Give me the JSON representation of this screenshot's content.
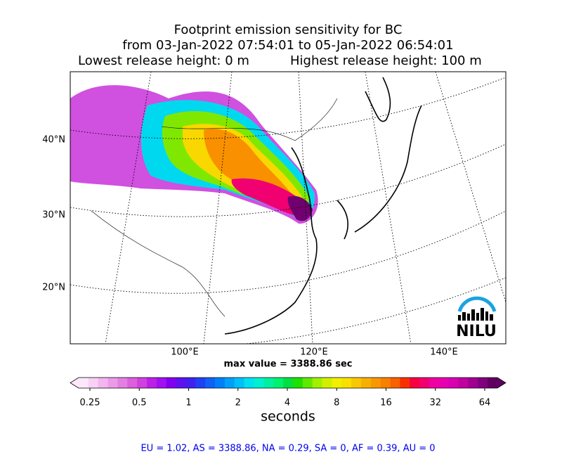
{
  "title": [
    "Footprint emission sensitivity for BC",
    "from 03-Jan-2022 07:54:01 to 05-Jan-2022 06:54:01"
  ],
  "release": {
    "lowest": "Lowest release height: 0 m",
    "highest": "Highest release height: 100 m"
  },
  "map": {
    "lat_labels": [
      "40°N",
      "30°N",
      "20°N"
    ],
    "lon_labels": [
      "100°E",
      "120°E",
      "140°E"
    ],
    "logo": "NILU"
  },
  "max_value": "max value = 3388.86 sec",
  "colorbar": {
    "ticks": [
      0.25,
      0.5,
      1,
      2,
      4,
      8,
      16,
      32,
      64
    ],
    "label": "seconds",
    "colors": [
      "#fde8fb",
      "#f8d0f5",
      "#f2b5ee",
      "#eb9ae8",
      "#e47fe2",
      "#dc5fdc",
      "#d040e0",
      "#bb20e8",
      "#a010f0",
      "#8000f0",
      "#6010f0",
      "#4020f0",
      "#2040f5",
      "#1060f5",
      "#0080f8",
      "#00a0f8",
      "#00c0f8",
      "#00e0f0",
      "#00f0d0",
      "#00f0a0",
      "#00f070",
      "#00e040",
      "#20e000",
      "#60e800",
      "#a0f000",
      "#d0f000",
      "#f0f000",
      "#f8e000",
      "#f8c800",
      "#f8b000",
      "#f89800",
      "#f88000",
      "#f86000",
      "#f83000",
      "#f80040",
      "#f00070",
      "#f000a0",
      "#e800b0",
      "#d800b0",
      "#c000a0",
      "#a00090",
      "#800080",
      "#600060"
    ]
  },
  "summary": "EU = 1.02,  AS = 3388.86,  NA = 0.29,  SA = 0,  AF = 0.39,  AU = 0"
}
